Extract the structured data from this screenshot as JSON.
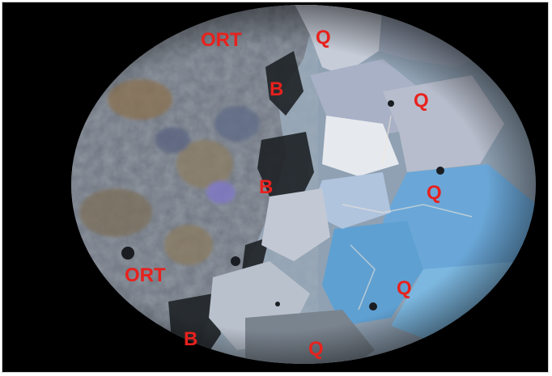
{
  "image": {
    "labels": [
      {
        "id": "ort-top",
        "text": "ORT"
      },
      {
        "id": "q-top",
        "text": "Q"
      },
      {
        "id": "b-upper",
        "text": "B"
      },
      {
        "id": "q-right-upper",
        "text": "Q"
      },
      {
        "id": "b-middle",
        "text": "B"
      },
      {
        "id": "q-right-middle",
        "text": "Q"
      },
      {
        "id": "ort-lower",
        "text": "ORT"
      },
      {
        "id": "q-right-lower",
        "text": "Q"
      },
      {
        "id": "b-bottom",
        "text": "B"
      },
      {
        "id": "q-bottom",
        "text": "Q"
      }
    ],
    "colors": {
      "label": "#e8211d",
      "background": "#000000",
      "quartz_blue": "#6aa7d8",
      "quartz_pale": "#d9dee6",
      "orthoclase_gray": "#6f7580",
      "biotite_dark": "#1e2226"
    }
  }
}
